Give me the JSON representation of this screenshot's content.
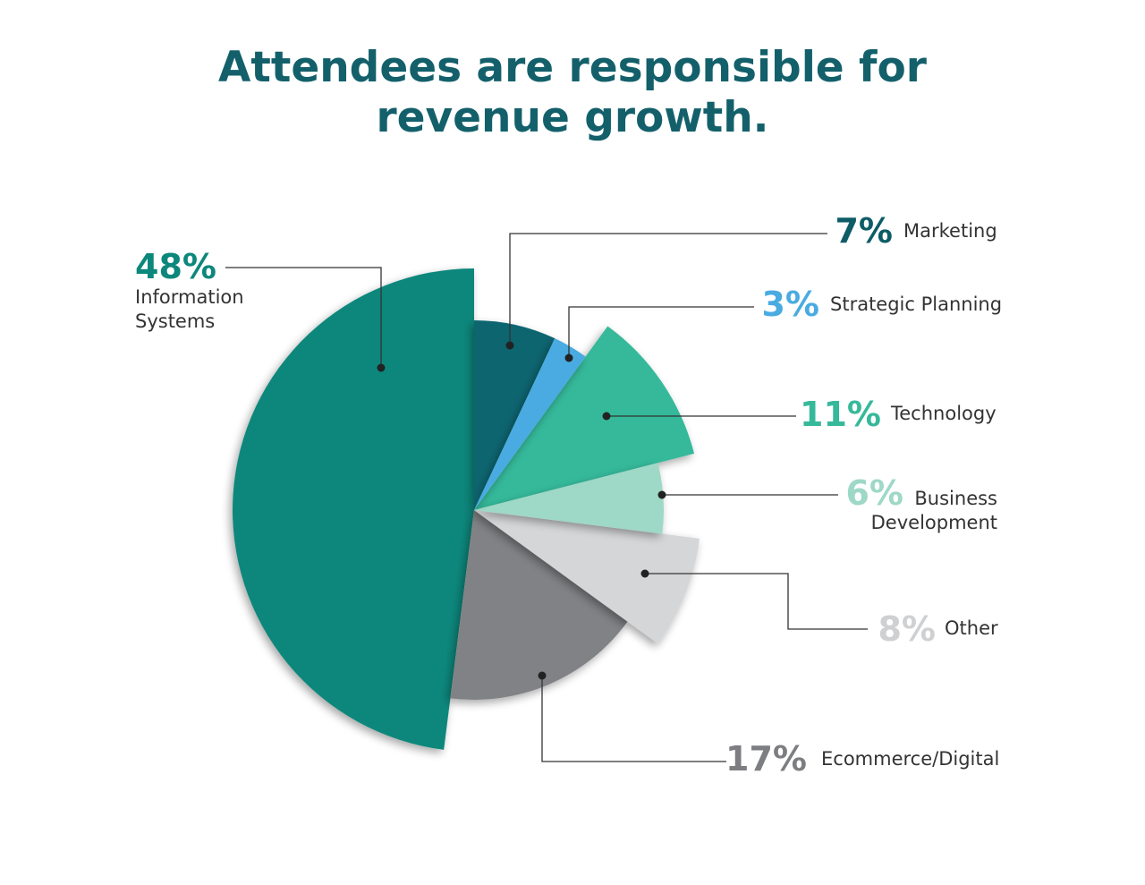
{
  "chart_data": {
    "type": "pie",
    "title_lines": [
      "Attendees are responsible for",
      "revenue growth."
    ],
    "slices": [
      {
        "name": "Marketing",
        "label_lines": [
          "Marketing"
        ],
        "value": 7,
        "value_label": "7%",
        "color": "#08656f",
        "text_color": "#0d5c66",
        "pulled": false
      },
      {
        "name": "Strategic Planning",
        "label_lines": [
          "Strategic Planning"
        ],
        "value": 3,
        "value_label": "3%",
        "color": "#4aabe1",
        "text_color": "#4aabe1",
        "pulled": false
      },
      {
        "name": "Technology",
        "label_lines": [
          "Technology"
        ],
        "value": 11,
        "value_label": "11%",
        "color": "#36b99a",
        "text_color": "#36b99a",
        "pulled": true
      },
      {
        "name": "Business Development",
        "label_lines": [
          "Business",
          "Development"
        ],
        "value": 6,
        "value_label": "6%",
        "color": "#9ed8c6",
        "text_color": "#9ed8c6",
        "pulled": false
      },
      {
        "name": "Other",
        "label_lines": [
          "Other"
        ],
        "value": 8,
        "value_label": "8%",
        "color": "#d5d6d8",
        "text_color": "#cfd0d2",
        "pulled": true
      },
      {
        "name": "Ecommerce/Digital",
        "label_lines": [
          "Ecommerce/Digital"
        ],
        "value": 17,
        "value_label": "17%",
        "color": "#818285",
        "text_color": "#7d7e81",
        "pulled": false
      },
      {
        "name": "Information Systems",
        "label_lines": [
          "Information",
          "Systems"
        ],
        "value": 48,
        "value_label": "48%",
        "color": "#0c877b",
        "text_color": "#0c877b",
        "pulled": true
      }
    ],
    "label_text_color": "#333333",
    "leader_line_color": "#333333"
  }
}
